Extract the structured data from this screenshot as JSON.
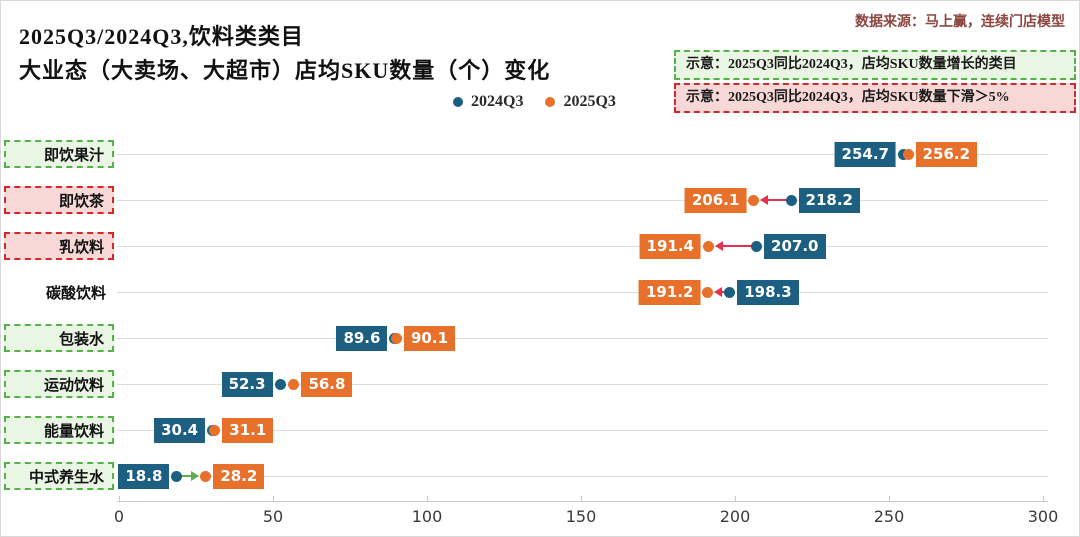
{
  "header": {
    "title_line1": "2025Q3/2024Q3,饮料类类目",
    "title_line2": "大业态（大卖场、大超市）店均SKU数量（个）变化",
    "source": "数据来源：马上赢，连续门店模型",
    "note_growth": "示意：2025Q3同比2024Q3，店均SKU数量增长的类目",
    "note_decline": "示意：2025Q3同比2024Q3，店均SKU数量下滑＞5%"
  },
  "legend": {
    "series1": "2024Q3",
    "series2": "2025Q3"
  },
  "colors": {
    "series_2024": "#1d5f81",
    "series_2025": "#e7702b",
    "decline_arrow": "#e53150",
    "growth_arrow": "#5cad51",
    "growth_box_border": "#55b24a",
    "growth_box_fill": "#eaf6e4",
    "decline_box_border": "#d02b2b",
    "decline_box_fill": "#f8d8d6",
    "gridline": "#dcdcdc",
    "axis": "#c9c9c9"
  },
  "chart_data": {
    "type": "dumbbell",
    "title": "2025Q3/2024Q3,饮料类类目 大业态（大卖场、大超市）店均SKU数量（个）变化",
    "series_names": [
      "2024Q3",
      "2025Q3"
    ],
    "xlim": [
      0,
      300
    ],
    "x_ticks": [
      0,
      50,
      100,
      150,
      200,
      250,
      300
    ],
    "grid": "horizontal-only",
    "legend_position": "top",
    "rows": [
      {
        "category": "即饮果汁",
        "box": "growth",
        "v2024": 254.7,
        "v2025": 256.2,
        "arrow": null
      },
      {
        "category": "即饮茶",
        "box": "decline",
        "v2024": 218.2,
        "v2025": 206.1,
        "arrow": "decline"
      },
      {
        "category": "乳饮料",
        "box": "decline",
        "v2024": 207.0,
        "v2025": 191.4,
        "arrow": "decline"
      },
      {
        "category": "碳酸饮料",
        "box": null,
        "v2024": 198.3,
        "v2025": 191.2,
        "arrow": "decline"
      },
      {
        "category": "包装水",
        "box": "growth",
        "v2024": 89.6,
        "v2025": 90.1,
        "arrow": null
      },
      {
        "category": "运动饮料",
        "box": "growth",
        "v2024": 52.3,
        "v2025": 56.8,
        "arrow": null
      },
      {
        "category": "能量饮料",
        "box": "growth",
        "v2024": 30.4,
        "v2025": 31.1,
        "arrow": null
      },
      {
        "category": "中式养生水",
        "box": "growth",
        "v2024": 18.8,
        "v2025": 28.2,
        "arrow": "growth"
      }
    ]
  }
}
